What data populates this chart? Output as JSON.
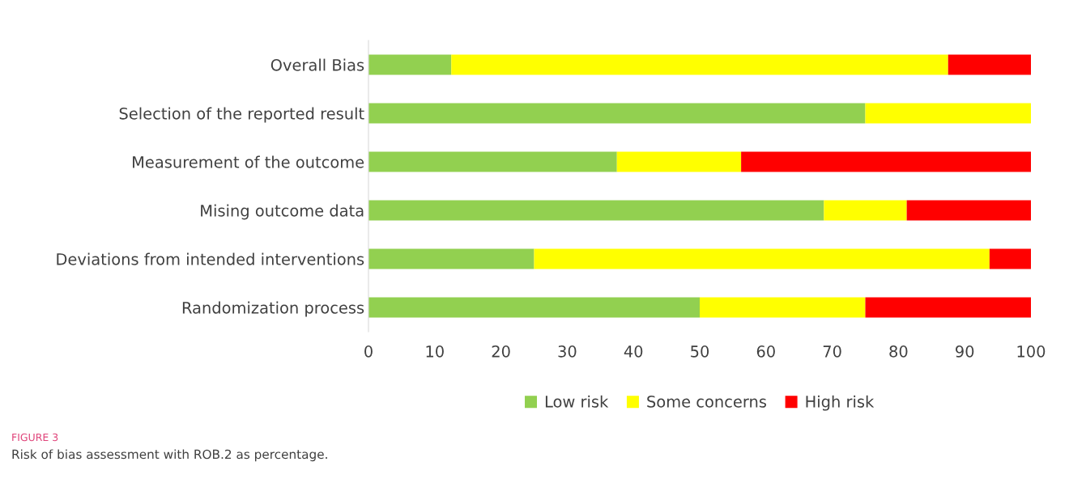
{
  "chart_data": {
    "type": "bar",
    "orientation": "horizontal",
    "stacked": true,
    "categories": [
      "Overall Bias",
      "Selection of the reported result",
      "Measurement of the outcome",
      "Mising outcome data",
      "Deviations from intended interventions",
      "Randomization process"
    ],
    "series": [
      {
        "name": "Low risk",
        "color": "#92d050",
        "values": [
          12.5,
          75,
          37.5,
          68.75,
          25,
          50
        ]
      },
      {
        "name": "Some concerns",
        "color": "#ffff00",
        "values": [
          75,
          25,
          18.75,
          12.5,
          68.75,
          25
        ]
      },
      {
        "name": "High risk",
        "color": "#ff0000",
        "values": [
          12.5,
          0,
          43.75,
          18.75,
          6.25,
          25
        ]
      }
    ],
    "xlim": [
      0,
      100
    ],
    "xticks": [
      0,
      10,
      20,
      30,
      40,
      50,
      60,
      70,
      80,
      90,
      100
    ],
    "grid": false,
    "legend": "bottom",
    "annotations": [
      "FIGURE 3",
      "Risk of bias assessment with ROB.2 as percentage."
    ]
  }
}
